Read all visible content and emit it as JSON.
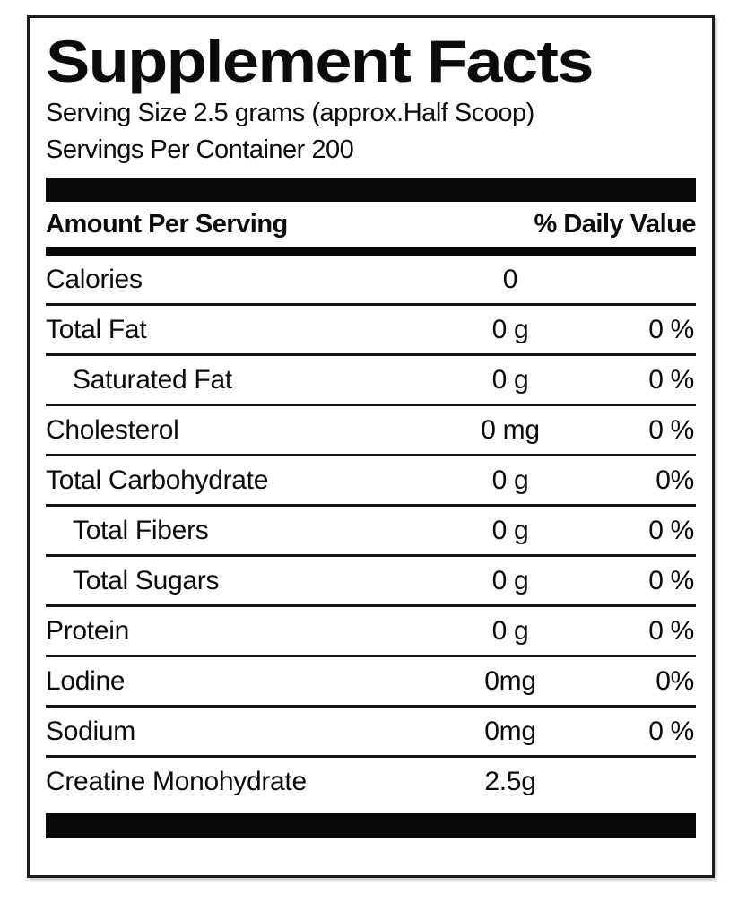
{
  "label": {
    "title": "Supplement Facts",
    "serving_size_line": "Serving Size 2.5 grams (approx.Half Scoop)",
    "servings_per_container_line": "Servings Per Container 200",
    "header": {
      "amount_col": "Amount Per Serving",
      "daily_value_col": "% Daily Value"
    },
    "rows": [
      {
        "name": "Calories",
        "amount": "0",
        "daily_value": "",
        "indent": false
      },
      {
        "name": "Total Fat",
        "amount": "0 g",
        "daily_value": "0 %",
        "indent": false
      },
      {
        "name": "Saturated Fat",
        "amount": "0 g",
        "daily_value": "0 %",
        "indent": true
      },
      {
        "name": "Cholesterol",
        "amount": "0 mg",
        "daily_value": "0 %",
        "indent": false
      },
      {
        "name": "Total Carbohydrate",
        "amount": "0 g",
        "daily_value": "0%",
        "indent": false
      },
      {
        "name": "Total Fibers",
        "amount": "0 g",
        "daily_value": "0 %",
        "indent": true
      },
      {
        "name": "Total Sugars",
        "amount": "0 g",
        "daily_value": "0 %",
        "indent": true
      },
      {
        "name": "Protein",
        "amount": "0 g",
        "daily_value": "0 %",
        "indent": false
      },
      {
        "name": "Lodine",
        "amount": "0mg",
        "daily_value": "0%",
        "indent": false
      },
      {
        "name": "Sodium",
        "amount": "0mg",
        "daily_value": "0 %",
        "indent": false
      },
      {
        "name": "Creatine Monohydrate",
        "amount": "2.5g",
        "daily_value": "",
        "indent": false
      }
    ],
    "colors": {
      "ink": "#0a0a0a",
      "background": "#ffffff"
    }
  }
}
